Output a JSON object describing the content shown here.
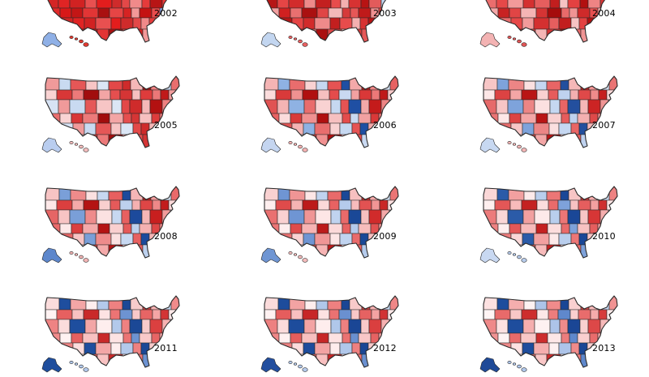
{
  "figure": {
    "panels": [
      {
        "year": "2002",
        "palette": [
          "#e02424",
          "#d12222",
          "#e85050",
          "#e31d1d",
          "#cf2b2b",
          "#e34848",
          "#f08a8a",
          "#e63b3b",
          "#b71515",
          "#e83b3b",
          "#f2a2a2",
          "#e02a2a",
          "#d81818",
          "#c31616",
          "#e23535",
          "#a91010",
          "#e64545",
          "#d62323",
          "#f39999",
          "#c41212",
          "#e94c4c",
          "#8fa7e6",
          "#e02d2d",
          "#f6b6b6",
          "#d42525"
        ],
        "alaska_color": "#8fb0e6",
        "hawaii_color": "#e0392f"
      },
      {
        "year": "2003",
        "palette": [
          "#e54545",
          "#d22b2b",
          "#ee8a8a",
          "#c31f1f",
          "#e74c4c",
          "#f4b0b0",
          "#d73232",
          "#b81313",
          "#e35b5b",
          "#c2d6f0",
          "#e13838",
          "#f1a0a0",
          "#d02020",
          "#e97070",
          "#aa1010",
          "#e04545",
          "#f3b9b9",
          "#d63a3a",
          "#e65757",
          "#bf1a1a",
          "#f09090",
          "#e34141",
          "#d42a2a",
          "#ee8080",
          "#b61616"
        ],
        "alaska_color": "#c3d6f0",
        "hawaii_color": "#e86060"
      },
      {
        "year": "2004",
        "palette": [
          "#e64848",
          "#f29b9b",
          "#d43030",
          "#e65e5e",
          "#c21e1e",
          "#f7c3c3",
          "#e34141",
          "#b21010",
          "#ee8484",
          "#d83737",
          "#e85555",
          "#f3a8a8",
          "#c82222",
          "#e04545",
          "#f5b5b5",
          "#d53434",
          "#a50c0c",
          "#e96a6a",
          "#f09494",
          "#cf2a2a",
          "#e75050",
          "#f4adad",
          "#dc3b3b",
          "#b91515",
          "#ea6d6d"
        ],
        "alaska_color": "#f3b3b3",
        "hawaii_color": "#e05555"
      },
      {
        "year": "2005",
        "palette": [
          "#f09a9a",
          "#c9daf1",
          "#e55757",
          "#f7c5c5",
          "#dbe6f5",
          "#e34848",
          "#cf2b2b",
          "#f6b8b8",
          "#b31111",
          "#ee8080",
          "#c6d6ef",
          "#e96e6e",
          "#f9d3d3",
          "#d83737",
          "#ec7a7a",
          "#a10d0d",
          "#f3a5a5",
          "#e54f4f",
          "#d53535",
          "#f7c0c0",
          "#de3c3c",
          "#eb7777",
          "#c01a1a",
          "#f19d9d",
          "#d7e3f5"
        ],
        "alaska_color": "#b9cdef",
        "hawaii_color": "#f3bcbc"
      },
      {
        "year": "2006",
        "palette": [
          "#f4b4b4",
          "#8fb2e3",
          "#e96d6d",
          "#f9d2d2",
          "#c6d8f1",
          "#e55353",
          "#1f4fa3",
          "#f3a9a9",
          "#c41b1b",
          "#ee8585",
          "#d6e3f6",
          "#e76262",
          "#fbdcdc",
          "#d93a3a",
          "#f09191",
          "#b01010",
          "#f6c0c0",
          "#e44c4c",
          "#c9d9f1",
          "#f2a1a1",
          "#da3838",
          "#ec7878",
          "#bf1818",
          "#f7c8c8",
          "#e05353"
        ],
        "alaska_color": "#c4d5f0",
        "hawaii_color": "#f4b1b1"
      },
      {
        "year": "2007",
        "palette": [
          "#f7c6c6",
          "#7ea3db",
          "#ec8585",
          "#fbe0e0",
          "#c5d7f1",
          "#e86565",
          "#234f9e",
          "#f5b8b8",
          "#cc2424",
          "#f09494",
          "#d7e4f6",
          "#ea7474",
          "#fde7e7",
          "#dc4343",
          "#f3a6a6",
          "#b91515",
          "#f9d0d0",
          "#e65c5c",
          "#bfd2ef",
          "#f4b0b0",
          "#df4949",
          "#ef8b8b",
          "#c51f1f",
          "#fad7d7",
          "#e66a6a"
        ],
        "alaska_color": "#c7d8f1",
        "hawaii_color": "#f3b5b5"
      },
      {
        "year": "2008",
        "palette": [
          "#f7c4c4",
          "#7a9fd8",
          "#ee8b8b",
          "#fbe1e1",
          "#c7d8f1",
          "#e76060",
          "#1c4a9c",
          "#f5b6b6",
          "#c81f1f",
          "#f29c9c",
          "#d8e5f6",
          "#e96a6a",
          "#fde8e8",
          "#db3f3f",
          "#f4aaaa",
          "#b41313",
          "#f9cfcf",
          "#e55a5a",
          "#bdd1ee",
          "#f5b1b1",
          "#de4646",
          "#ef8888",
          "#c21c1c",
          "#fad8d8",
          "#e56565"
        ],
        "alaska_color": "#5d87cc",
        "hawaii_color": "#f2b4b4"
      },
      {
        "year": "2009",
        "palette": [
          "#f9d1d1",
          "#6f95d3",
          "#f09595",
          "#fde6e6",
          "#c0d3ef",
          "#e96a6a",
          "#1a4897",
          "#f7c0c0",
          "#d12b2b",
          "#f4a8a8",
          "#d3e1f5",
          "#eb7575",
          "#feeeee",
          "#df4b4b",
          "#f6b4b4",
          "#bc1a1a",
          "#fbd9d9",
          "#e86262",
          "#b5cbec",
          "#f7bcbc",
          "#e25252",
          "#f19595",
          "#c92626",
          "#fcdede",
          "#e97070"
        ],
        "alaska_color": "#6e95d3",
        "hawaii_color": "#f5bcbc"
      },
      {
        "year": "2010",
        "palette": [
          "#fad7d7",
          "#2b5ba8",
          "#f2a0a0",
          "#fdeaea",
          "#b9ceed",
          "#ec7676",
          "#1a4797",
          "#f7c5c5",
          "#d73636",
          "#f5adad",
          "#cddcf3",
          "#ee8282",
          "#feefef",
          "#e35757",
          "#f7bbbb",
          "#c42121",
          "#fcdddd",
          "#ea6b6b",
          "#7ea2da",
          "#f8c2c2",
          "#e55e5e",
          "#f3a0a0",
          "#cf2f2f",
          "#fde3e3",
          "#ec7b7b"
        ],
        "alaska_color": "#c8d8f1",
        "hawaii_color": "#b7ccec"
      },
      {
        "year": "2011",
        "palette": [
          "#fbdcdc",
          "#1e4e9e",
          "#f3a6a6",
          "#feeeee",
          "#b3c9eb",
          "#ee8181",
          "#1b4896",
          "#f8cbcb",
          "#db4040",
          "#f6b2b2",
          "#c7d8f1",
          "#f08b8b",
          "#fff2f2",
          "#e66060",
          "#f8c2c2",
          "#c92929",
          "#fde3e3",
          "#ec7474",
          "#6d93d2",
          "#f9c9c9",
          "#e76565",
          "#f4a5a5",
          "#d33535",
          "#fde7e7",
          "#ee8383"
        ],
        "alaska_color": "#1f4e9d",
        "hawaii_color": "#b1c8eb"
      },
      {
        "year": "2012",
        "palette": [
          "#fbdbdb",
          "#1d4c9c",
          "#f3a3a3",
          "#feeded",
          "#b0c7ea",
          "#ee8080",
          "#1a4695",
          "#f8caca",
          "#da3f3f",
          "#f6b0b0",
          "#c6d7f1",
          "#ef8787",
          "#fff1f1",
          "#e55d5d",
          "#f8c0c0",
          "#c72727",
          "#fde2e2",
          "#eb7272",
          "#6a90d0",
          "#f9c7c7",
          "#e66262",
          "#f4a2a2",
          "#d13333",
          "#fde6e6",
          "#ed8080"
        ],
        "alaska_color": "#234f9f",
        "hawaii_color": "#b4caec"
      },
      {
        "year": "2013",
        "palette": [
          "#fde1e1",
          "#1e4d9d",
          "#f5aeae",
          "#fef1f1",
          "#adc4e9",
          "#f08b8b",
          "#1a4695",
          "#f9d0d0",
          "#dd4848",
          "#f7b9b9",
          "#c2d4f0",
          "#f19393",
          "#fff4f4",
          "#e86a6a",
          "#f9c7c7",
          "#cd2d2d",
          "#fde7e7",
          "#ed7d7d",
          "#5f88cc",
          "#facfcf",
          "#e96c6c",
          "#f5abab",
          "#d63b3b",
          "#fdeaea",
          "#ef8989"
        ],
        "alaska_color": "#1f4a98",
        "hawaii_color": "#b0c7eb"
      }
    ]
  }
}
